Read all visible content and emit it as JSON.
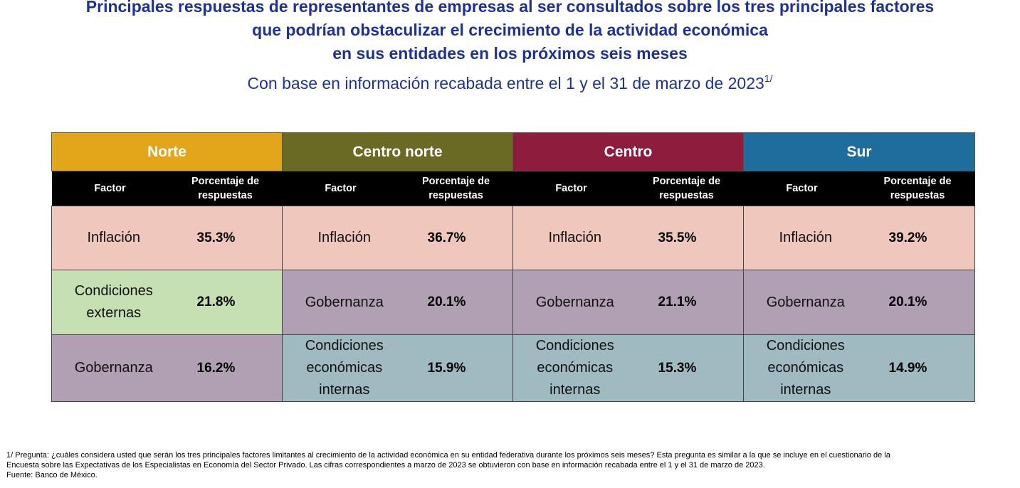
{
  "title": {
    "line1": "Principales respuestas de representantes de empresas al ser consultados sobre los tres principales factores",
    "line2": "que podrían obstaculizar el crecimiento de la actividad económica",
    "line3": "en sus entidades en los próximos seis meses",
    "subtitle": "Con base en información recabada entre el 1 y el 31 de marzo de 2023",
    "subtitle_sup": "1/"
  },
  "colors": {
    "norte": "#e3a51a",
    "centro_norte": "#6b6a24",
    "centro": "#8e1c3c",
    "sur": "#1f6d9c",
    "inflacion": "#efc7bd",
    "condiciones_externas": "#c6e0b4",
    "gobernanza": "#b1a0b3",
    "condiciones_internas": "#9fbac1"
  },
  "header": {
    "factor": "Factor",
    "porcentaje_line1": "Porcentaje de",
    "porcentaje_line2": "respuestas"
  },
  "regions": [
    {
      "name": "Norte",
      "rows": [
        {
          "factor_lines": [
            "Inflación"
          ],
          "pct": "35.3%"
        },
        {
          "factor_lines": [
            "Condiciones",
            "externas"
          ],
          "pct": "21.8%"
        },
        {
          "factor_lines": [
            "Gobernanza"
          ],
          "pct": "16.2%"
        }
      ]
    },
    {
      "name": "Centro norte",
      "rows": [
        {
          "factor_lines": [
            "Inflación"
          ],
          "pct": "36.7%"
        },
        {
          "factor_lines": [
            "Gobernanza"
          ],
          "pct": "20.1%"
        },
        {
          "factor_lines": [
            "Condiciones",
            "económicas",
            "internas"
          ],
          "pct": "15.9%"
        }
      ]
    },
    {
      "name": "Centro",
      "rows": [
        {
          "factor_lines": [
            "Inflación"
          ],
          "pct": "35.5%"
        },
        {
          "factor_lines": [
            "Gobernanza"
          ],
          "pct": "21.1%"
        },
        {
          "factor_lines": [
            "Condiciones",
            "económicas",
            "internas"
          ],
          "pct": "15.3%"
        }
      ]
    },
    {
      "name": "Sur",
      "rows": [
        {
          "factor_lines": [
            "Inflación"
          ],
          "pct": "39.2%"
        },
        {
          "factor_lines": [
            "Gobernanza"
          ],
          "pct": "20.1%"
        },
        {
          "factor_lines": [
            "Condiciones",
            "económicas",
            "internas"
          ],
          "pct": "14.9%"
        }
      ]
    }
  ],
  "footnote": {
    "line1": "1/ Pregunta: ¿cuáles considera usted que serán los tres principales factores limitantes al crecimiento de la actividad económica en su entidad federativa durante los próximos seis meses? Esta pregunta es similar a la que se incluye en el cuestionario de la",
    "line2": "Encuesta sobre las Expectativas de los Especialistas en Economía del Sector Privado. Las cifras correspondientes a marzo de 2023 se obtuvieron con base en información recabada entre el 1 y el 31 de marzo de 2023.",
    "line3": "Fuente: Banco de México."
  }
}
